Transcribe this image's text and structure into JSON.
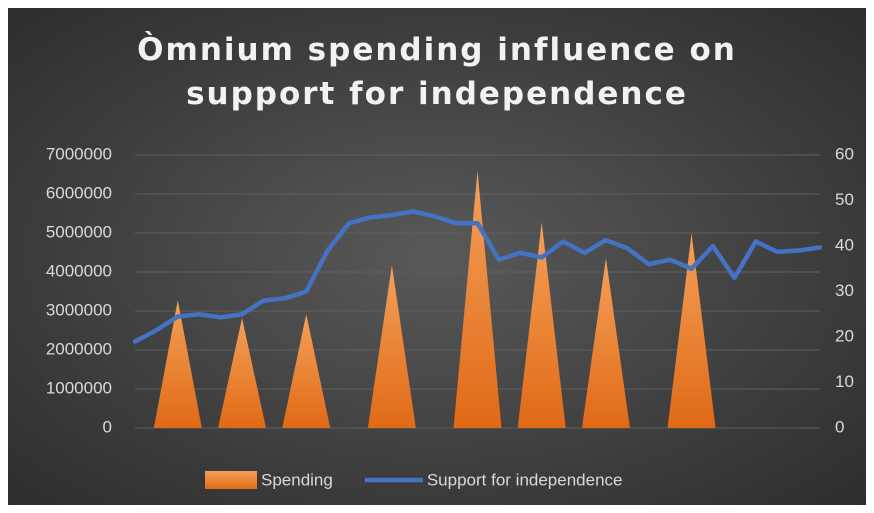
{
  "chart_data": {
    "type": "triangle-line",
    "title": "Òmnium spending influence on support for independence",
    "categories": [
      null,
      null,
      null,
      null,
      null,
      null,
      null,
      null,
      null,
      null,
      null,
      null,
      null,
      null,
      null,
      null,
      null,
      null,
      null,
      null,
      null,
      null,
      null,
      null,
      null,
      null,
      null,
      null,
      null,
      null,
      null,
      null,
      null
    ],
    "series": [
      {
        "name": "Spending",
        "color": "#ed7d31",
        "type": "triangle",
        "axis": "y",
        "values": [
          null,
          null,
          3280000,
          null,
          null,
          2820000,
          null,
          null,
          2920000,
          null,
          null,
          null,
          4180000,
          null,
          null,
          null,
          6600000,
          null,
          null,
          5280000,
          null,
          null,
          4360000,
          null,
          null,
          null,
          5000000,
          null,
          null,
          null,
          null,
          null,
          null
        ]
      },
      {
        "name": "Support for independence",
        "color": "#4472c4",
        "type": "line",
        "axis": "y2",
        "values": [
          19,
          21.5,
          24.5,
          25,
          24.3,
          25,
          28,
          28.5,
          30,
          39,
          45,
          46.3,
          46.8,
          47.6,
          46.5,
          45,
          45,
          37,
          38.5,
          37.5,
          41,
          38.5,
          41.3,
          39.5,
          36,
          37,
          35,
          40,
          33,
          41,
          38.7,
          39,
          39.7
        ]
      }
    ],
    "ylim": [
      0,
      7000000
    ],
    "yticks": [
      0,
      1000000,
      2000000,
      3000000,
      4000000,
      5000000,
      6000000,
      7000000
    ],
    "y2lim": [
      0,
      60
    ],
    "y2ticks": [
      0,
      10,
      20,
      30,
      40,
      50,
      60
    ],
    "grid": true,
    "legend": "bottom"
  }
}
